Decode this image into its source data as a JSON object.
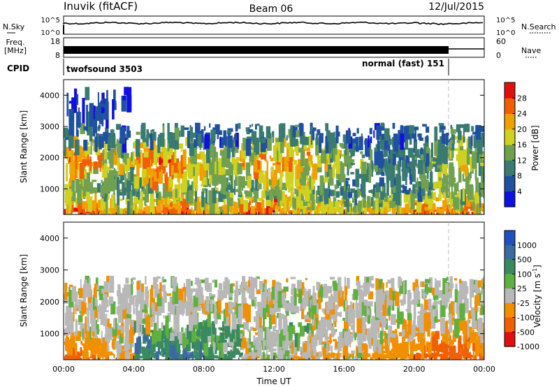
{
  "header": {
    "station": "Inuvik (fitACF)",
    "beam": "Beam 06",
    "date": "12/Jul/2015"
  },
  "noise_panel": {
    "left_label": "N.Sky",
    "right_label": "N.Search",
    "left_ticks": [
      "10^5",
      "10^0"
    ],
    "right_ticks": [
      "10^5",
      "10^0"
    ]
  },
  "freq_panel": {
    "left_label_line1": "Freq.",
    "left_label_line2": "[MHz]",
    "right_label": "Nave",
    "left_ticks": [
      "18",
      "8"
    ],
    "right_ticks": [
      "60",
      "0"
    ]
  },
  "cpid_panel": {
    "label": "CPID",
    "modes": [
      {
        "name": "twofsound 3503",
        "start_hour": 0,
        "end_hour": 22
      },
      {
        "name": "normal (fast) 151",
        "start_hour": 22,
        "end_hour": 24
      }
    ]
  },
  "chart_data": [
    {
      "type": "heatmap",
      "name": "power",
      "ylabel": "Slant Range [km]",
      "xlabel": "",
      "x_ticks": [
        "00:00",
        "04:00",
        "08:00",
        "12:00",
        "16:00",
        "20:00",
        "00:00"
      ],
      "xlim_hours": [
        0,
        24
      ],
      "y_ticks": [
        1000,
        2000,
        3000,
        4000
      ],
      "ylim_km": [
        180,
        4500
      ],
      "colorbar": {
        "label": "Power [dB]",
        "ticks": [
          "4",
          "8",
          "12",
          "16",
          "20",
          "24",
          "28"
        ],
        "colors": [
          "#1010e0",
          "#2050a0",
          "#3a7a70",
          "#70a050",
          "#d0d020",
          "#f0a000",
          "#f06000",
          "#e01010"
        ]
      },
      "rows": [
        {
          "range_km": 300,
          "values": [
            28,
            28,
            24,
            22,
            24,
            28,
            28,
            24,
            22,
            24,
            28,
            28,
            24,
            22,
            24,
            24,
            20,
            22,
            24,
            24,
            26,
            28,
            28,
            26
          ]
        },
        {
          "range_km": 450,
          "values": [
            26,
            24,
            20,
            18,
            20,
            24,
            26,
            22,
            18,
            20,
            24,
            26,
            22,
            18,
            20,
            20,
            16,
            18,
            20,
            22,
            22,
            24,
            24,
            22
          ]
        },
        {
          "range_km": 700,
          "values": [
            20,
            18,
            16,
            14,
            16,
            20,
            20,
            18,
            14,
            14,
            18,
            20,
            18,
            14,
            16,
            16,
            12,
            14,
            16,
            16,
            18,
            18,
            18,
            16
          ]
        },
        {
          "range_km": 1000,
          "values": [
            16,
            14,
            12,
            10,
            12,
            14,
            16,
            14,
            12,
            10,
            12,
            14,
            16,
            18,
            12,
            10,
            8,
            10,
            12,
            8,
            10,
            14,
            14,
            12
          ]
        },
        {
          "range_km": 1500,
          "values": [
            18,
            16,
            14,
            12,
            20,
            24,
            20,
            16,
            14,
            14,
            16,
            20,
            18,
            16,
            16,
            14,
            12,
            12,
            10,
            10,
            12,
            14,
            16,
            14
          ]
        },
        {
          "range_km": 1900,
          "values": [
            26,
            24,
            22,
            18,
            26,
            28,
            24,
            20,
            18,
            16,
            22,
            24,
            24,
            22,
            20,
            18,
            14,
            12,
            10,
            8,
            10,
            14,
            18,
            16
          ]
        },
        {
          "range_km": 2300,
          "values": [
            20,
            18,
            16,
            14,
            18,
            20,
            18,
            14,
            12,
            12,
            16,
            18,
            18,
            16,
            16,
            14,
            10,
            8,
            8,
            8,
            10,
            12,
            16,
            14
          ]
        },
        {
          "range_km": 2700,
          "values": [
            10,
            8,
            8,
            6,
            10,
            12,
            10,
            8,
            6,
            6,
            8,
            10,
            12,
            10,
            8,
            8,
            6,
            4,
            6,
            6,
            6,
            8,
            10,
            8
          ]
        },
        {
          "range_km": 3600,
          "values": [
            4,
            6,
            4,
            4,
            0,
            0,
            0,
            0,
            0,
            0,
            0,
            0,
            0,
            0,
            0,
            0,
            0,
            0,
            0,
            0,
            0,
            0,
            0,
            0
          ]
        }
      ]
    },
    {
      "type": "heatmap",
      "name": "velocity",
      "ylabel": "Slant Range [km]",
      "xlabel": "Time UT",
      "x_ticks": [
        "00:00",
        "04:00",
        "08:00",
        "12:00",
        "16:00",
        "20:00",
        "00:00"
      ],
      "xlim_hours": [
        0,
        24
      ],
      "y_ticks": [
        1000,
        2000,
        3000,
        4000
      ],
      "ylim_km": [
        180,
        4500
      ],
      "colorbar": {
        "label": "Velocity [m s^-1]",
        "ticks": [
          "1000",
          "500",
          "100",
          "25",
          "-25",
          "-100",
          "-500",
          "-1000"
        ],
        "colors": [
          "#2050c0",
          "#3a6aa0",
          "#3a8a60",
          "#60b040",
          "#b8b8b8",
          "#f09000",
          "#f06000",
          "#e01010"
        ]
      },
      "rows": [
        {
          "range_km": 300,
          "values": [
            -500,
            -500,
            -300,
            -100,
            100,
            200,
            300,
            300,
            200,
            100,
            -25,
            0,
            25,
            -25,
            -50,
            -25,
            0,
            -100,
            -200,
            -300,
            -400,
            -500,
            -500,
            -500
          ]
        },
        {
          "range_km": 500,
          "values": [
            -300,
            -200,
            -100,
            -50,
            200,
            300,
            400,
            300,
            200,
            100,
            0,
            25,
            25,
            0,
            -25,
            -25,
            0,
            -50,
            -100,
            -200,
            -300,
            -400,
            -500,
            -300
          ]
        },
        {
          "range_km": 800,
          "values": [
            -100,
            -50,
            -25,
            0,
            300,
            200,
            100,
            50,
            25,
            0,
            0,
            0,
            0,
            0,
            0,
            0,
            0,
            -25,
            -50,
            -100,
            -200,
            -300,
            -300,
            -200
          ]
        },
        {
          "range_km": 1100,
          "values": [
            0,
            0,
            0,
            0,
            100,
            50,
            25,
            100,
            200,
            100,
            0,
            0,
            25,
            50,
            0,
            0,
            0,
            0,
            0,
            -25,
            -50,
            -100,
            -100,
            -50
          ]
        },
        {
          "range_km": 1600,
          "values": [
            0,
            0,
            0,
            0,
            0,
            0,
            0,
            0,
            0,
            0,
            0,
            0,
            0,
            0,
            0,
            0,
            0,
            0,
            0,
            0,
            0,
            0,
            0,
            0
          ]
        },
        {
          "range_km": 2000,
          "values": [
            0,
            0,
            0,
            0,
            0,
            0,
            0,
            0,
            0,
            0,
            0,
            0,
            0,
            0,
            0,
            0,
            0,
            0,
            0,
            0,
            0,
            0,
            0,
            0
          ]
        },
        {
          "range_km": 2400,
          "values": [
            0,
            0,
            0,
            0,
            0,
            0,
            0,
            0,
            0,
            0,
            0,
            0,
            0,
            0,
            0,
            0,
            0,
            0,
            0,
            0,
            0,
            0,
            0,
            0
          ]
        }
      ]
    }
  ]
}
